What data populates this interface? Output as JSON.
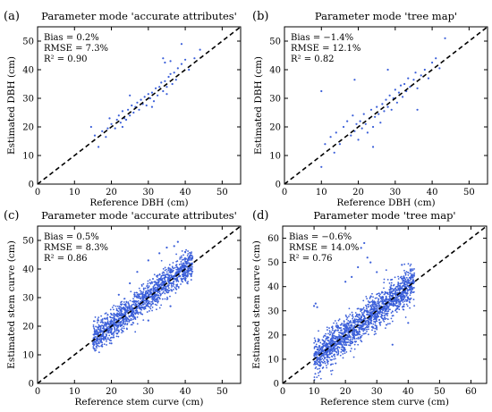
{
  "chart_data": [
    {
      "type": "scatter",
      "panel_label": "(a)",
      "title": "Parameter mode 'accurate attributes'",
      "xlabel": "Reference DBH (cm)",
      "ylabel": "Estimated DBH (cm)",
      "xlim": [
        0,
        55
      ],
      "ylim": [
        0,
        55
      ],
      "xticks": [
        0,
        10,
        20,
        30,
        40,
        50
      ],
      "yticks": [
        0,
        10,
        20,
        30,
        40,
        50
      ],
      "stats": [
        "Bias = 0.2%",
        "RMSE = 7.3%",
        "R² = 0.90"
      ],
      "color": "#3b5fd9",
      "reference_line": "1:1 dashed",
      "points": [
        [
          14.5,
          20.0
        ],
        [
          15.5,
          17.0
        ],
        [
          16.5,
          13.0
        ],
        [
          17.5,
          18.5
        ],
        [
          18.5,
          16.5
        ],
        [
          19.0,
          19.5
        ],
        [
          19.5,
          23.0
        ],
        [
          20.0,
          21.0
        ],
        [
          21.0,
          19.5
        ],
        [
          21.5,
          22.5
        ],
        [
          22.0,
          24.0
        ],
        [
          22.5,
          21.5
        ],
        [
          23.0,
          25.5
        ],
        [
          23.5,
          23.0
        ],
        [
          24.0,
          22.5
        ],
        [
          24.5,
          26.0
        ],
        [
          25.0,
          24.0
        ],
        [
          25.5,
          27.5
        ],
        [
          26.0,
          25.0
        ],
        [
          26.5,
          27.0
        ],
        [
          27.0,
          28.5
        ],
        [
          27.5,
          26.0
        ],
        [
          28.0,
          29.5
        ],
        [
          28.5,
          28.0
        ],
        [
          29.0,
          30.5
        ],
        [
          29.5,
          27.5
        ],
        [
          30.0,
          31.5
        ],
        [
          30.5,
          30.0
        ],
        [
          31.0,
          32.0
        ],
        [
          31.5,
          29.0
        ],
        [
          32.0,
          33.5
        ],
        [
          32.5,
          31.0
        ],
        [
          33.0,
          34.0
        ],
        [
          33.5,
          35.5
        ],
        [
          34.0,
          32.5
        ],
        [
          34.5,
          36.0
        ],
        [
          35.0,
          34.0
        ],
        [
          35.5,
          37.5
        ],
        [
          36.0,
          38.5
        ],
        [
          36.5,
          35.0
        ],
        [
          37.0,
          39.0
        ],
        [
          37.5,
          36.5
        ],
        [
          38.0,
          40.5
        ],
        [
          39.0,
          42.0
        ],
        [
          40.0,
          43.5
        ],
        [
          41.0,
          40.0
        ],
        [
          42.5,
          44.0
        ],
        [
          44.0,
          47.0
        ],
        [
          34.0,
          44.0
        ],
        [
          34.5,
          42.5
        ],
        [
          36.0,
          43.0
        ],
        [
          39.0,
          49.0
        ],
        [
          25.0,
          31.0
        ],
        [
          23.0,
          20.0
        ],
        [
          31.0,
          27.0
        ],
        [
          35.0,
          31.5
        ]
      ]
    },
    {
      "type": "scatter",
      "panel_label": "(b)",
      "title": "Parameter mode 'tree map'",
      "xlabel": "Reference DBH (cm)",
      "ylabel": "Estimated DBH (cm)",
      "xlim": [
        0,
        55
      ],
      "ylim": [
        0,
        55
      ],
      "xticks": [
        0,
        10,
        20,
        30,
        40,
        50
      ],
      "yticks": [
        0,
        10,
        20,
        30,
        40,
        50
      ],
      "stats": [
        "Bias = −1.4%",
        "RMSE = 12.1%",
        "R² = 0.82"
      ],
      "color": "#3b5fd9",
      "reference_line": "1:1 dashed",
      "points": [
        [
          10.0,
          6.0
        ],
        [
          11.0,
          14.0
        ],
        [
          12.5,
          16.5
        ],
        [
          13.5,
          11.0
        ],
        [
          14.0,
          18.0
        ],
        [
          15.0,
          14.0
        ],
        [
          16.0,
          20.0
        ],
        [
          17.0,
          22.0
        ],
        [
          18.0,
          17.0
        ],
        [
          18.5,
          24.0
        ],
        [
          19.0,
          18.5
        ],
        [
          19.5,
          21.0
        ],
        [
          20.0,
          15.5
        ],
        [
          20.5,
          22.0
        ],
        [
          21.0,
          19.5
        ],
        [
          21.5,
          24.5
        ],
        [
          22.0,
          21.0
        ],
        [
          22.5,
          18.0
        ],
        [
          23.0,
          23.0
        ],
        [
          23.5,
          26.0
        ],
        [
          24.0,
          20.0
        ],
        [
          24.5,
          23.5
        ],
        [
          25.0,
          27.0
        ],
        [
          25.5,
          24.5
        ],
        [
          26.0,
          21.5
        ],
        [
          26.5,
          28.0
        ],
        [
          27.0,
          25.5
        ],
        [
          27.5,
          29.5
        ],
        [
          28.0,
          27.0
        ],
        [
          28.5,
          31.0
        ],
        [
          29.0,
          26.0
        ],
        [
          29.5,
          30.0
        ],
        [
          30.0,
          33.0
        ],
        [
          30.5,
          28.5
        ],
        [
          31.0,
          32.0
        ],
        [
          31.5,
          34.5
        ],
        [
          32.0,
          30.5
        ],
        [
          32.5,
          35.0
        ],
        [
          33.0,
          32.5
        ],
        [
          33.5,
          37.0
        ],
        [
          34.0,
          34.0
        ],
        [
          35.0,
          36.5
        ],
        [
          35.5,
          39.0
        ],
        [
          36.0,
          33.5
        ],
        [
          37.0,
          38.0
        ],
        [
          38.0,
          40.0
        ],
        [
          39.0,
          37.0
        ],
        [
          40.0,
          42.5
        ],
        [
          41.0,
          44.0
        ],
        [
          42.0,
          40.5
        ],
        [
          43.5,
          51.0
        ],
        [
          19.0,
          36.5
        ],
        [
          10.0,
          32.5
        ],
        [
          28.0,
          40.0
        ],
        [
          36.0,
          26.0
        ],
        [
          24.0,
          13.0
        ]
      ]
    },
    {
      "type": "scatter",
      "panel_label": "(c)",
      "title": "Parameter mode 'accurate attributes'",
      "xlabel": "Reference stem curve (cm)",
      "ylabel": "Estimated stem curve (cm)",
      "xlim": [
        0,
        55
      ],
      "ylim": [
        0,
        55
      ],
      "xticks": [
        0,
        10,
        20,
        30,
        40,
        50
      ],
      "yticks": [
        0,
        10,
        20,
        30,
        40,
        50
      ],
      "stats": [
        "Bias = 0.5%",
        "RMSE = 8.3%",
        "R² = 0.86"
      ],
      "color": "#3b5fd9",
      "reference_line": "1:1 dashed",
      "cloud": {
        "x_range": [
          15,
          42
        ],
        "slope": 1.0,
        "intercept": 0.3,
        "spread": 2.6,
        "n": 1500
      },
      "points": [
        [
          16.0,
          15.0
        ],
        [
          17.0,
          20.0
        ],
        [
          19.0,
          24.0
        ],
        [
          22.0,
          31.0
        ],
        [
          25.0,
          35.0
        ],
        [
          27.0,
          39.0
        ],
        [
          30.0,
          43.0
        ],
        [
          33.0,
          45.5
        ],
        [
          35.0,
          47.5
        ],
        [
          37.0,
          48.0
        ],
        [
          38.0,
          49.5
        ],
        [
          40.0,
          46.0
        ],
        [
          41.0,
          44.0
        ],
        [
          20.0,
          14.0
        ],
        [
          30.0,
          22.0
        ],
        [
          36.0,
          27.0
        ]
      ]
    },
    {
      "type": "scatter",
      "panel_label": "(d)",
      "title": "Parameter mode 'tree map'",
      "xlabel": "Reference stem curve (cm)",
      "ylabel": "Estimated stem curve (cm)",
      "xlim": [
        0,
        65
      ],
      "ylim": [
        0,
        65
      ],
      "xticks": [
        0,
        10,
        20,
        30,
        40,
        50,
        60
      ],
      "yticks": [
        0,
        10,
        20,
        30,
        40,
        50,
        60
      ],
      "stats": [
        "Bias = −0.6%",
        "RMSE = 14.0%",
        "R² = 0.76"
      ],
      "color": "#3b5fd9",
      "reference_line": "1:1 dashed",
      "cloud": {
        "x_range": [
          10,
          42
        ],
        "slope": 0.97,
        "intercept": 0.8,
        "spread": 3.8,
        "n": 1800
      },
      "points": [
        [
          10.0,
          32.0
        ],
        [
          10.5,
          33.0
        ],
        [
          11.0,
          31.5
        ],
        [
          10.0,
          10.0
        ],
        [
          10.5,
          13.0
        ],
        [
          25.0,
          56.0
        ],
        [
          26.0,
          58.0
        ],
        [
          27.0,
          52.0
        ],
        [
          24.0,
          48.0
        ],
        [
          28.0,
          50.0
        ],
        [
          30.0,
          46.0
        ],
        [
          35.0,
          16.0
        ],
        [
          20.0,
          42.0
        ],
        [
          22.0,
          44.0
        ],
        [
          40.0,
          25.0
        ],
        [
          38.0,
          49.0
        ]
      ]
    }
  ]
}
